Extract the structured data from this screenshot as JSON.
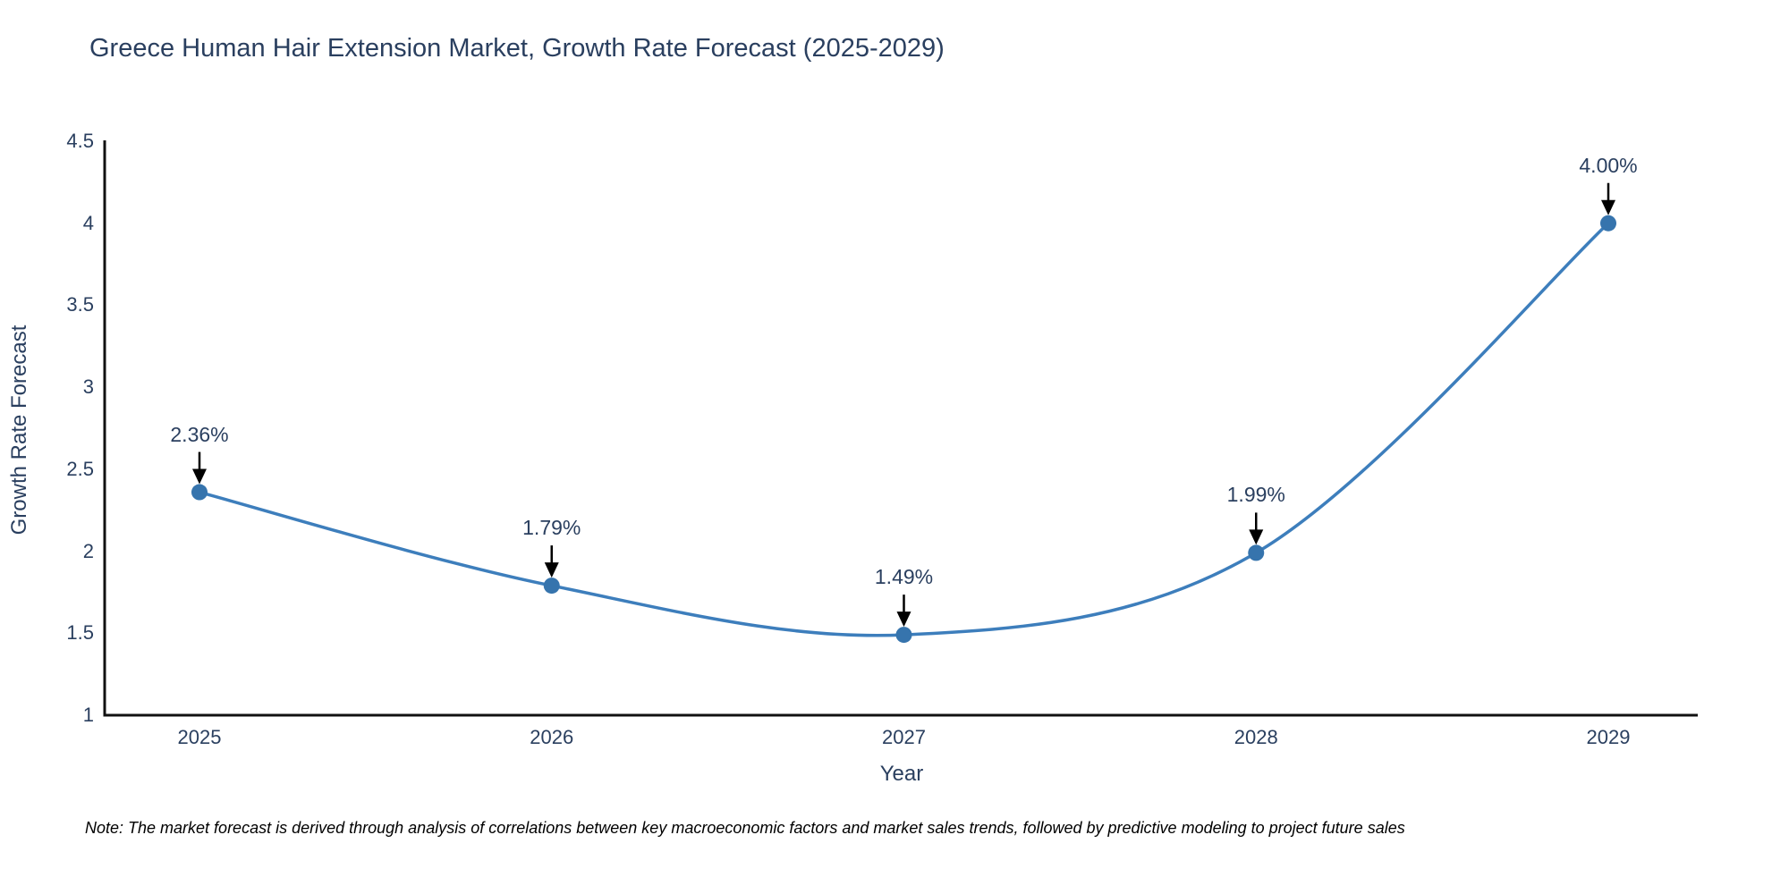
{
  "chart_data": {
    "type": "line",
    "title": "Greece Human Hair Extension Market, Growth Rate Forecast (2025-2029)",
    "xlabel": "Year",
    "ylabel": "Growth Rate Forecast",
    "categories": [
      "2025",
      "2026",
      "2027",
      "2028",
      "2029"
    ],
    "series": [
      {
        "name": "Growth Rate Forecast",
        "values": [
          2.36,
          1.79,
          1.49,
          1.99,
          4.0
        ],
        "point_labels": [
          "2.36%",
          "1.79%",
          "1.49%",
          "1.99%",
          "4.00%"
        ]
      }
    ],
    "ylim": [
      1,
      4.5
    ],
    "yticks": [
      1,
      1.5,
      2,
      2.5,
      3,
      3.5,
      4,
      4.5
    ],
    "ytick_labels": [
      "1",
      "1.5",
      "2",
      "2.5",
      "3",
      "3.5",
      "4",
      "4.5"
    ],
    "grid": false,
    "legend_position": "none",
    "line_shape": "spline",
    "colors": {
      "line": "#3d7ebc",
      "marker": "#3674ad",
      "axis": "#111111",
      "text": "#2a3f5f",
      "annotation_arrow": "#000000",
      "background": "#ffffff"
    }
  },
  "note": "Note: The market forecast is derived through analysis of correlations between key macroeconomic factors and market sales trends, followed by predictive modeling to project future sales"
}
